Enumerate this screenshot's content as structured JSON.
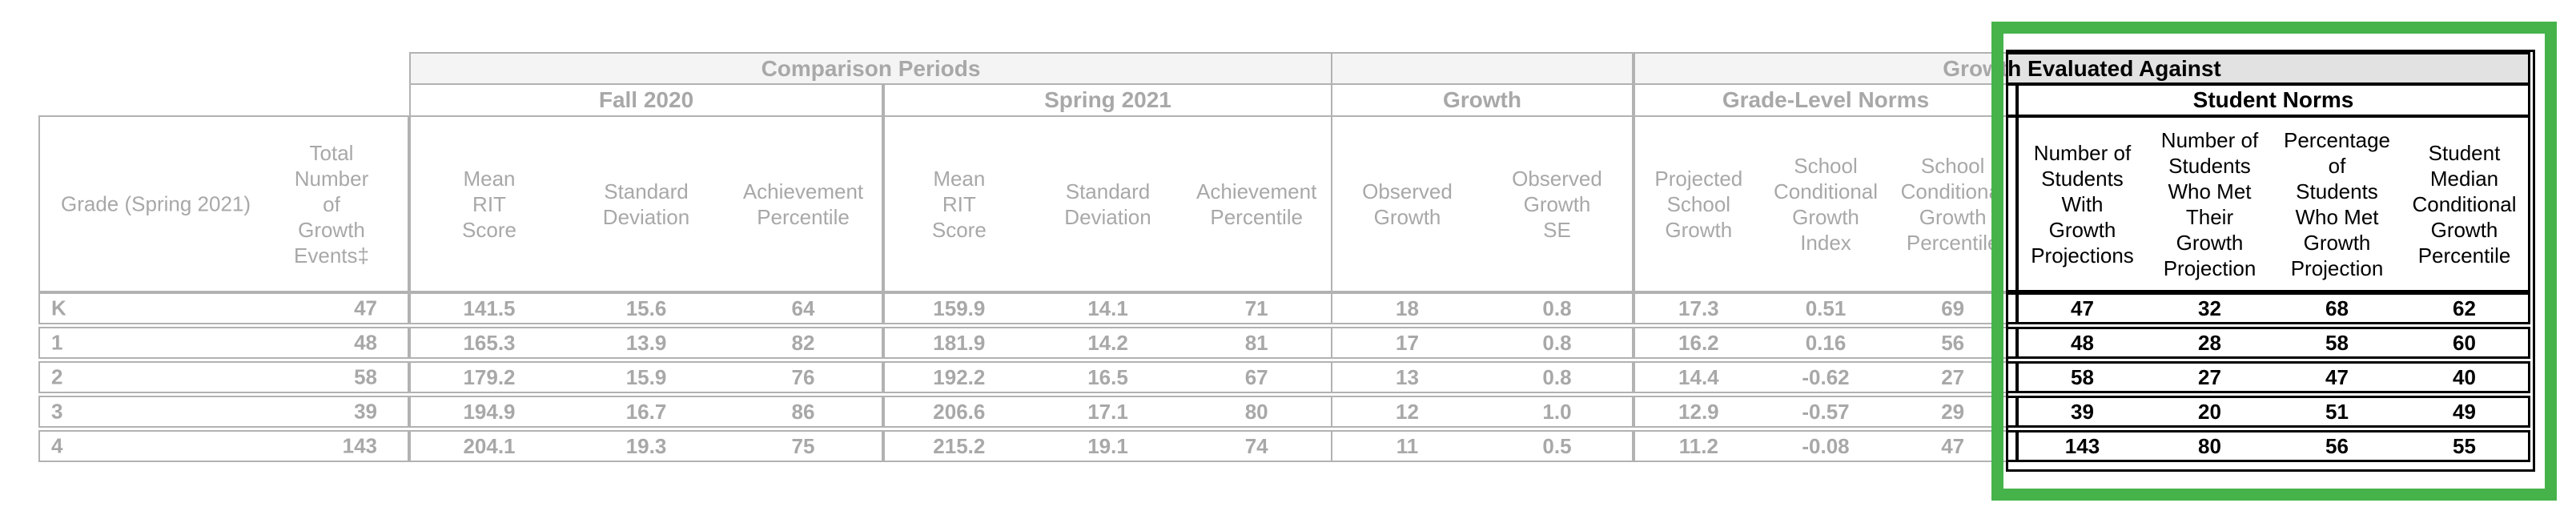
{
  "highlight": {
    "border_color": "#45b34a"
  },
  "table": {
    "corner": {
      "grade_header": "Grade (Spring 2021)",
      "total_header": "Total\nNumber\nof\nGrowth\nEvents‡"
    },
    "group_bars": {
      "comparison_periods": "Comparison Periods",
      "growth_evaluated_against": "Growth Evaluated Against"
    },
    "subgroups": {
      "fall_2020": "Fall 2020",
      "spring_2021": "Spring 2021",
      "growth": "Growth",
      "grade_level_norms": "Grade-Level Norms",
      "student_norms": "Student Norms"
    },
    "columns": {
      "fall": [
        "Mean\nRIT\nScore",
        "Standard\nDeviation",
        "Achievement\nPercentile"
      ],
      "spring": [
        "Mean\nRIT\nScore",
        "Standard\nDeviation",
        "Achievement\nPercentile"
      ],
      "growth": [
        "Observed\nGrowth",
        "Observed\nGrowth\nSE"
      ],
      "gln": [
        "Projected\nSchool\nGrowth",
        "School\nConditional\nGrowth\nIndex",
        "School\nConditional\nGrowth\nPercentile"
      ],
      "sn": [
        "Number of\nStudents\nWith\nGrowth\nProjections",
        "Number of\nStudents\nWho Met\nTheir\nGrowth\nProjection",
        "Percentage\nof\nStudents\nWho Met\nGrowth\nProjection",
        "Student\nMedian\nConditional\nGrowth\nPercentile"
      ]
    },
    "rows": [
      {
        "grade": "K",
        "total": "47",
        "fall": [
          "141.5",
          "15.6",
          "64"
        ],
        "spring": [
          "159.9",
          "14.1",
          "71"
        ],
        "growth": [
          "18",
          "0.8"
        ],
        "gln": [
          "17.3",
          "0.51",
          "69"
        ],
        "sn": [
          "47",
          "32",
          "68",
          "62"
        ]
      },
      {
        "grade": "1",
        "total": "48",
        "fall": [
          "165.3",
          "13.9",
          "82"
        ],
        "spring": [
          "181.9",
          "14.2",
          "81"
        ],
        "growth": [
          "17",
          "0.8"
        ],
        "gln": [
          "16.2",
          "0.16",
          "56"
        ],
        "sn": [
          "48",
          "28",
          "58",
          "60"
        ]
      },
      {
        "grade": "2",
        "total": "58",
        "fall": [
          "179.2",
          "15.9",
          "76"
        ],
        "spring": [
          "192.2",
          "16.5",
          "67"
        ],
        "growth": [
          "13",
          "0.8"
        ],
        "gln": [
          "14.4",
          "-0.62",
          "27"
        ],
        "sn": [
          "58",
          "27",
          "47",
          "40"
        ]
      },
      {
        "grade": "3",
        "total": "39",
        "fall": [
          "194.9",
          "16.7",
          "86"
        ],
        "spring": [
          "206.6",
          "17.1",
          "80"
        ],
        "growth": [
          "12",
          "1.0"
        ],
        "gln": [
          "12.9",
          "-0.57",
          "29"
        ],
        "sn": [
          "39",
          "20",
          "51",
          "49"
        ]
      },
      {
        "grade": "4",
        "total": "143",
        "fall": [
          "204.1",
          "19.3",
          "75"
        ],
        "spring": [
          "215.2",
          "19.1",
          "74"
        ],
        "growth": [
          "11",
          "0.5"
        ],
        "gln": [
          "11.2",
          "-0.08",
          "47"
        ],
        "sn": [
          "143",
          "80",
          "56",
          "55"
        ]
      }
    ]
  }
}
